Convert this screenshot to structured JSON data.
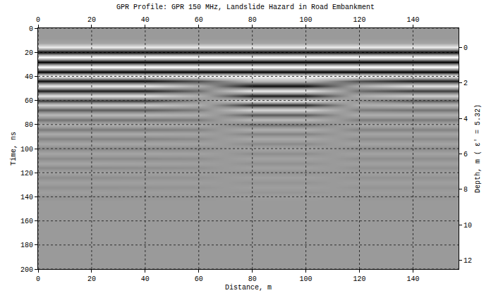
{
  "chart_data": {
    "type": "heatmap",
    "title": "GPR Profile: GPR 150 MHz, Landslide Hazard in Road Embankment",
    "x_label": "Distance, m",
    "y_label": "Time, ns",
    "y2_label": "Depth, m ( ε' = 5.32)",
    "x": [
      0,
      20,
      40,
      60,
      80,
      100,
      120,
      140,
      157
    ],
    "y": [
      0,
      4,
      8,
      12,
      16,
      20,
      24,
      28,
      32,
      36,
      40,
      44,
      48,
      52,
      56,
      60,
      64,
      68,
      72,
      76,
      80,
      84,
      88,
      92,
      96,
      100,
      104,
      108,
      112,
      116,
      120,
      124,
      128,
      132,
      136,
      140,
      144,
      148,
      152,
      156,
      160,
      164,
      168,
      172,
      176,
      180,
      184,
      188,
      192,
      196,
      200
    ],
    "cells": [
      [
        0,
        0,
        0,
        0,
        0,
        0,
        0,
        0,
        0
      ],
      [
        0,
        0,
        0,
        0,
        0,
        0,
        0,
        0,
        0
      ],
      [
        0,
        0,
        0,
        0,
        0,
        0,
        0,
        0,
        0
      ],
      [
        0.1,
        0.1,
        0.1,
        0.1,
        0.1,
        0.1,
        0.1,
        0.1,
        0.1
      ],
      [
        0.8,
        0.8,
        0.8,
        0.8,
        0.8,
        0.8,
        0.8,
        0.8,
        0.8
      ],
      [
        -1,
        -1,
        -1,
        -1,
        -1,
        -1,
        -1,
        -1,
        -1
      ],
      [
        1,
        1,
        1,
        1,
        1,
        1,
        1,
        1,
        1
      ],
      [
        -1,
        -1,
        -1,
        -1,
        -1,
        -1,
        -1,
        -1,
        -1
      ],
      [
        1,
        1,
        1,
        1,
        1,
        1,
        1,
        1,
        1
      ],
      [
        -1,
        -1,
        -1,
        -1,
        -1,
        -1,
        -1,
        -1,
        -1
      ],
      [
        0.9,
        0.9,
        0.9,
        0.9,
        0.9,
        0.9,
        0.9,
        0.8,
        0.8
      ],
      [
        -0.9,
        -0.9,
        -0.9,
        -0.5,
        0.3,
        0.3,
        -0.5,
        -0.8,
        -0.8
      ],
      [
        0.8,
        0.8,
        0.8,
        0.2,
        -0.9,
        -0.9,
        0.2,
        0.7,
        0.7
      ],
      [
        -0.8,
        -0.8,
        -0.8,
        -0.3,
        0.8,
        0.8,
        -0.3,
        -0.6,
        -0.6
      ],
      [
        0.7,
        0.7,
        0.7,
        0.2,
        -0.8,
        -0.8,
        0.2,
        0.5,
        0.5
      ],
      [
        -0.6,
        -0.6,
        -0.6,
        -0.1,
        0.7,
        0.7,
        -0.1,
        -0.4,
        -0.4
      ],
      [
        0.5,
        0.5,
        0.5,
        0.2,
        -0.7,
        -0.7,
        0.2,
        0.3,
        0.3
      ],
      [
        -0.4,
        -0.4,
        -0.4,
        -0.2,
        0.6,
        0.6,
        -0.2,
        -0.25,
        -0.25
      ],
      [
        0.3,
        0.3,
        0.3,
        0.2,
        -0.4,
        -0.4,
        0.2,
        0.2,
        0.2
      ],
      [
        -0.25,
        -0.25,
        -0.25,
        -0.2,
        0.3,
        0.3,
        -0.2,
        -0.2,
        -0.2
      ],
      [
        0.2,
        0.2,
        0.2,
        0.15,
        -0.25,
        -0.25,
        0.15,
        0.15,
        0.15
      ],
      [
        -0.2,
        -0.2,
        -0.2,
        -0.15,
        0.2,
        0.2,
        -0.15,
        -0.15,
        -0.15
      ],
      [
        0.15,
        0.15,
        0.15,
        0.1,
        -0.15,
        -0.15,
        0.1,
        0.1,
        0.1
      ],
      [
        -0.15,
        -0.15,
        -0.15,
        -0.1,
        0.15,
        0.15,
        -0.1,
        -0.1,
        -0.1
      ],
      [
        0.12,
        0.12,
        0.12,
        0.1,
        -0.1,
        -0.1,
        0.1,
        0.1,
        0.1
      ],
      [
        -0.12,
        -0.12,
        -0.12,
        -0.1,
        0.1,
        0.1,
        -0.1,
        -0.1,
        -0.1
      ],
      [
        0.1,
        0.1,
        0.1,
        0.08,
        -0.08,
        -0.08,
        0.08,
        0.08,
        0.08
      ],
      [
        -0.1,
        -0.1,
        -0.1,
        -0.08,
        0.08,
        0.08,
        -0.08,
        -0.08,
        -0.08
      ],
      [
        0.1,
        0.1,
        0.08,
        0.06,
        -0.06,
        -0.06,
        0.06,
        0.06,
        0.06
      ],
      [
        -0.1,
        -0.1,
        -0.08,
        -0.06,
        0.06,
        0.06,
        -0.06,
        -0.06,
        -0.06
      ],
      [
        0.08,
        0.08,
        0.06,
        0.05,
        -0.05,
        -0.05,
        0.05,
        0.05,
        0.05
      ],
      [
        -0.08,
        -0.08,
        -0.06,
        -0.05,
        0.05,
        0.05,
        -0.05,
        -0.05,
        -0.05
      ],
      [
        0.06,
        0.06,
        0.05,
        0.04,
        -0.04,
        -0.04,
        0.04,
        0.04,
        0.04
      ],
      [
        -0.06,
        -0.06,
        -0.05,
        -0.04,
        0.04,
        0.04,
        -0.04,
        -0.04,
        -0.04
      ],
      [
        0.04,
        0.04,
        0.03,
        0.03,
        -0.03,
        -0.03,
        0.03,
        0.03,
        0.03
      ],
      [
        -0.04,
        -0.04,
        -0.03,
        -0.03,
        0.03,
        0.03,
        -0.03,
        -0.03,
        -0.03
      ],
      [
        0,
        0,
        0,
        0,
        0,
        0,
        0,
        0,
        0
      ],
      [
        0,
        0,
        0,
        0,
        0,
        0,
        0,
        0,
        0
      ],
      [
        0,
        0,
        0,
        0,
        0,
        0,
        0,
        0,
        0
      ],
      [
        0,
        0,
        0,
        0,
        0,
        0,
        0,
        0,
        0
      ],
      [
        0,
        0,
        0,
        0,
        0,
        0,
        0,
        0,
        0
      ],
      [
        0,
        0,
        0,
        0,
        0,
        0,
        0,
        0,
        0
      ],
      [
        0,
        0,
        0,
        0,
        0,
        0,
        0,
        0,
        0
      ],
      [
        0,
        0,
        0,
        0,
        0,
        0,
        0,
        0,
        0
      ],
      [
        0,
        0,
        0,
        0,
        0,
        0,
        0,
        0,
        0
      ],
      [
        0,
        0,
        0,
        0,
        0,
        0,
        0,
        0,
        0
      ],
      [
        0,
        0,
        0,
        0,
        0,
        0,
        0,
        0,
        0
      ],
      [
        0,
        0,
        0,
        0,
        0,
        0,
        0,
        0,
        0
      ],
      [
        0,
        0,
        0,
        0,
        0,
        0,
        0,
        0,
        0
      ],
      [
        0,
        0,
        0,
        0,
        0,
        0,
        0,
        0,
        0
      ],
      [
        0,
        0,
        0,
        0,
        0,
        0,
        0,
        0,
        0
      ]
    ],
    "xlim": [
      0,
      157
    ],
    "xticks": [
      0,
      20,
      40,
      60,
      80,
      100,
      120,
      140
    ],
    "ylim": [
      200,
      0
    ],
    "yticks": [
      0,
      20,
      40,
      60,
      80,
      100,
      120,
      140,
      160,
      180,
      200
    ],
    "y2lim": [
      12.5,
      -1.1
    ],
    "y2ticks": [
      0,
      2,
      4,
      6,
      8,
      10,
      12
    ],
    "grid": true
  }
}
